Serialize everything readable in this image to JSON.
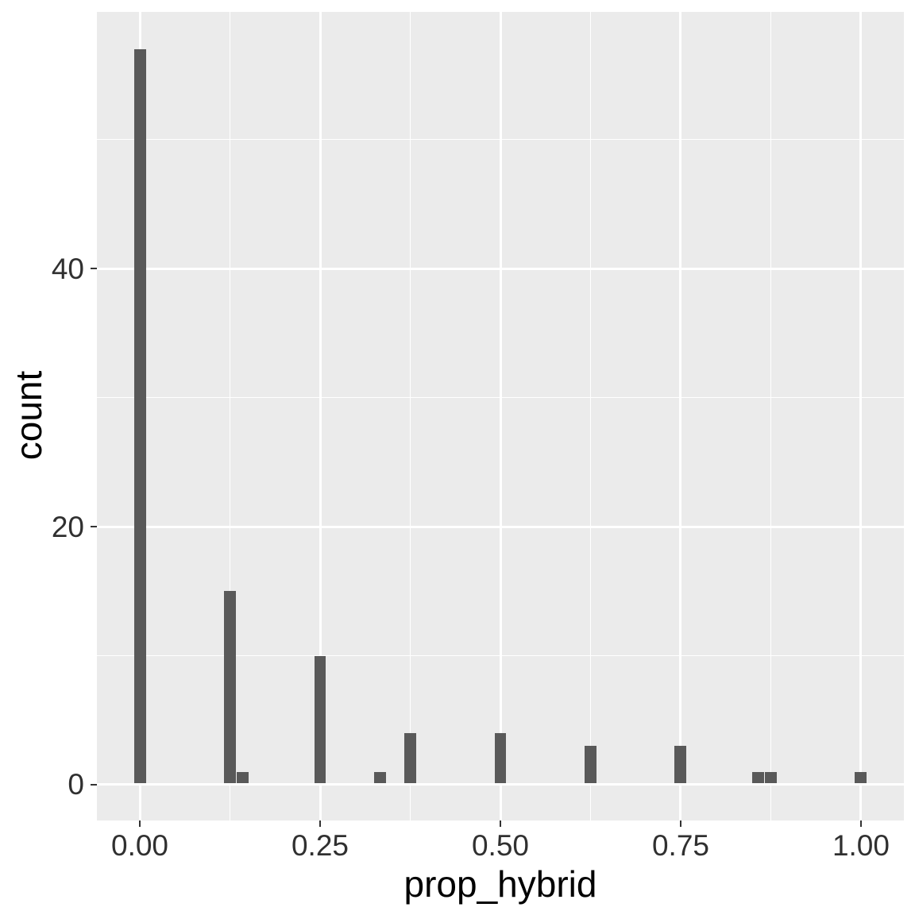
{
  "chart_data": {
    "type": "bar",
    "subtype": "histogram",
    "title": "",
    "xlabel": "prop_hybrid",
    "ylabel": "count",
    "x_ticks": [
      0.0,
      0.25,
      0.5,
      0.75,
      1.0
    ],
    "x_tick_labels": [
      "0.00",
      "0.25",
      "0.50",
      "0.75",
      "1.00"
    ],
    "x_minor_ticks": [
      0.125,
      0.375,
      0.625,
      0.875
    ],
    "y_ticks": [
      0,
      20,
      40
    ],
    "y_tick_labels": [
      "0",
      "20",
      "40"
    ],
    "y_minor_ticks": [
      10,
      30,
      50
    ],
    "xlim": [
      -0.0595,
      1.0595
    ],
    "ylim": [
      -2.77,
      59.88
    ],
    "bin_width": 0.0165,
    "grid": "on",
    "legend": "none",
    "bars": [
      {
        "x": 0.0,
        "count": 57
      },
      {
        "x": 0.125,
        "count": 15
      },
      {
        "x": 0.143,
        "count": 1
      },
      {
        "x": 0.25,
        "count": 10
      },
      {
        "x": 0.333,
        "count": 1
      },
      {
        "x": 0.375,
        "count": 4
      },
      {
        "x": 0.5,
        "count": 4
      },
      {
        "x": 0.625,
        "count": 3
      },
      {
        "x": 0.75,
        "count": 3
      },
      {
        "x": 0.857,
        "count": 1
      },
      {
        "x": 0.875,
        "count": 1
      },
      {
        "x": 1.0,
        "count": 1
      }
    ],
    "colors": {
      "bar": "#595959",
      "panel_bg": "#EBEBEB",
      "grid_major": "#FFFFFF",
      "grid_minor": "#FFFFFF",
      "tick_mark": "#333333",
      "tick_label": "#303030",
      "axis_title": "#000000",
      "page_bg": "#FFFFFF"
    }
  }
}
